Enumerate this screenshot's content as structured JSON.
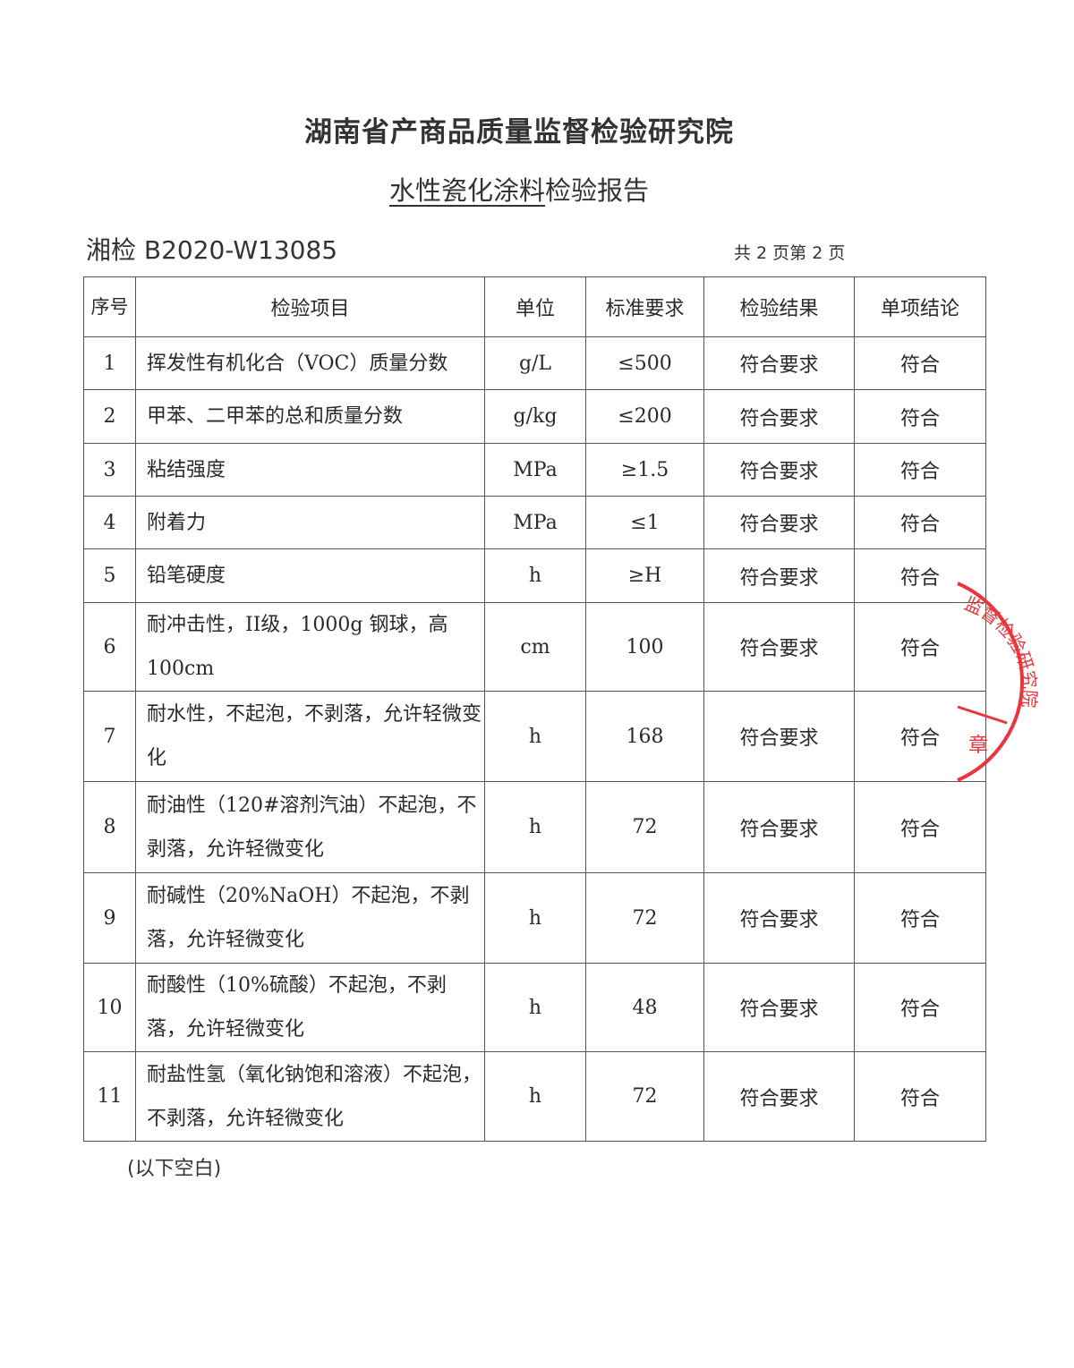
{
  "header": {
    "org": "湖南省产商品质量监督检验研究院",
    "title_underlined": "水性瓷化涂料",
    "title_rest": "检验报告",
    "report_no": "湘检  B2020-W13085",
    "page_info": "共 2 页第 2 页"
  },
  "table": {
    "headers": [
      "序号",
      "检验项目",
      "单位",
      "标准要求",
      "检验结果",
      "单项结论"
    ],
    "rows": [
      [
        "1",
        "挥发性有机化合（VOC）质量分数",
        "g/L",
        "≤500",
        "符合要求",
        "符合"
      ],
      [
        "2",
        "甲苯、二甲苯的总和质量分数",
        "g/kg",
        "≤200",
        "符合要求",
        "符合"
      ],
      [
        "3",
        "粘结强度",
        "MPa",
        "≥1.5",
        "符合要求",
        "符合"
      ],
      [
        "4",
        "附着力",
        "MPa",
        "≤1",
        "符合要求",
        "符合"
      ],
      [
        "5",
        "铅笔硬度",
        "h",
        "≥H",
        "符合要求",
        "符合"
      ],
      [
        "6",
        "耐冲击性，II级，1000g 钢球，高100cm",
        "cm",
        "100",
        "符合要求",
        "符合"
      ],
      [
        "7",
        "耐水性，不起泡，不剥落，允许轻微变化",
        "h",
        "168",
        "符合要求",
        "符合"
      ],
      [
        "8",
        "耐油性（120#溶剂汽油）不起泡，不剥落，允许轻微变化",
        "h",
        "72",
        "符合要求",
        "符合"
      ],
      [
        "9",
        "耐碱性（20%NaOH）不起泡，不剥落，允许轻微变化",
        "h",
        "72",
        "符合要求",
        "符合"
      ],
      [
        "10",
        "耐酸性（10%硫酸）不起泡，不剥落，允许轻微变化",
        "h",
        "48",
        "符合要求",
        "符合"
      ],
      [
        "11",
        "耐盐性氢（氧化钠饱和溶液）不起泡，不剥落，允许轻微变化",
        "h",
        "72",
        "符合要求",
        "符合"
      ]
    ]
  },
  "footer": {
    "blank_note": "(以下空白)"
  },
  "stamp": {
    "text": "监督检验研究院",
    "suffix": "章",
    "color": "#e8363c"
  }
}
